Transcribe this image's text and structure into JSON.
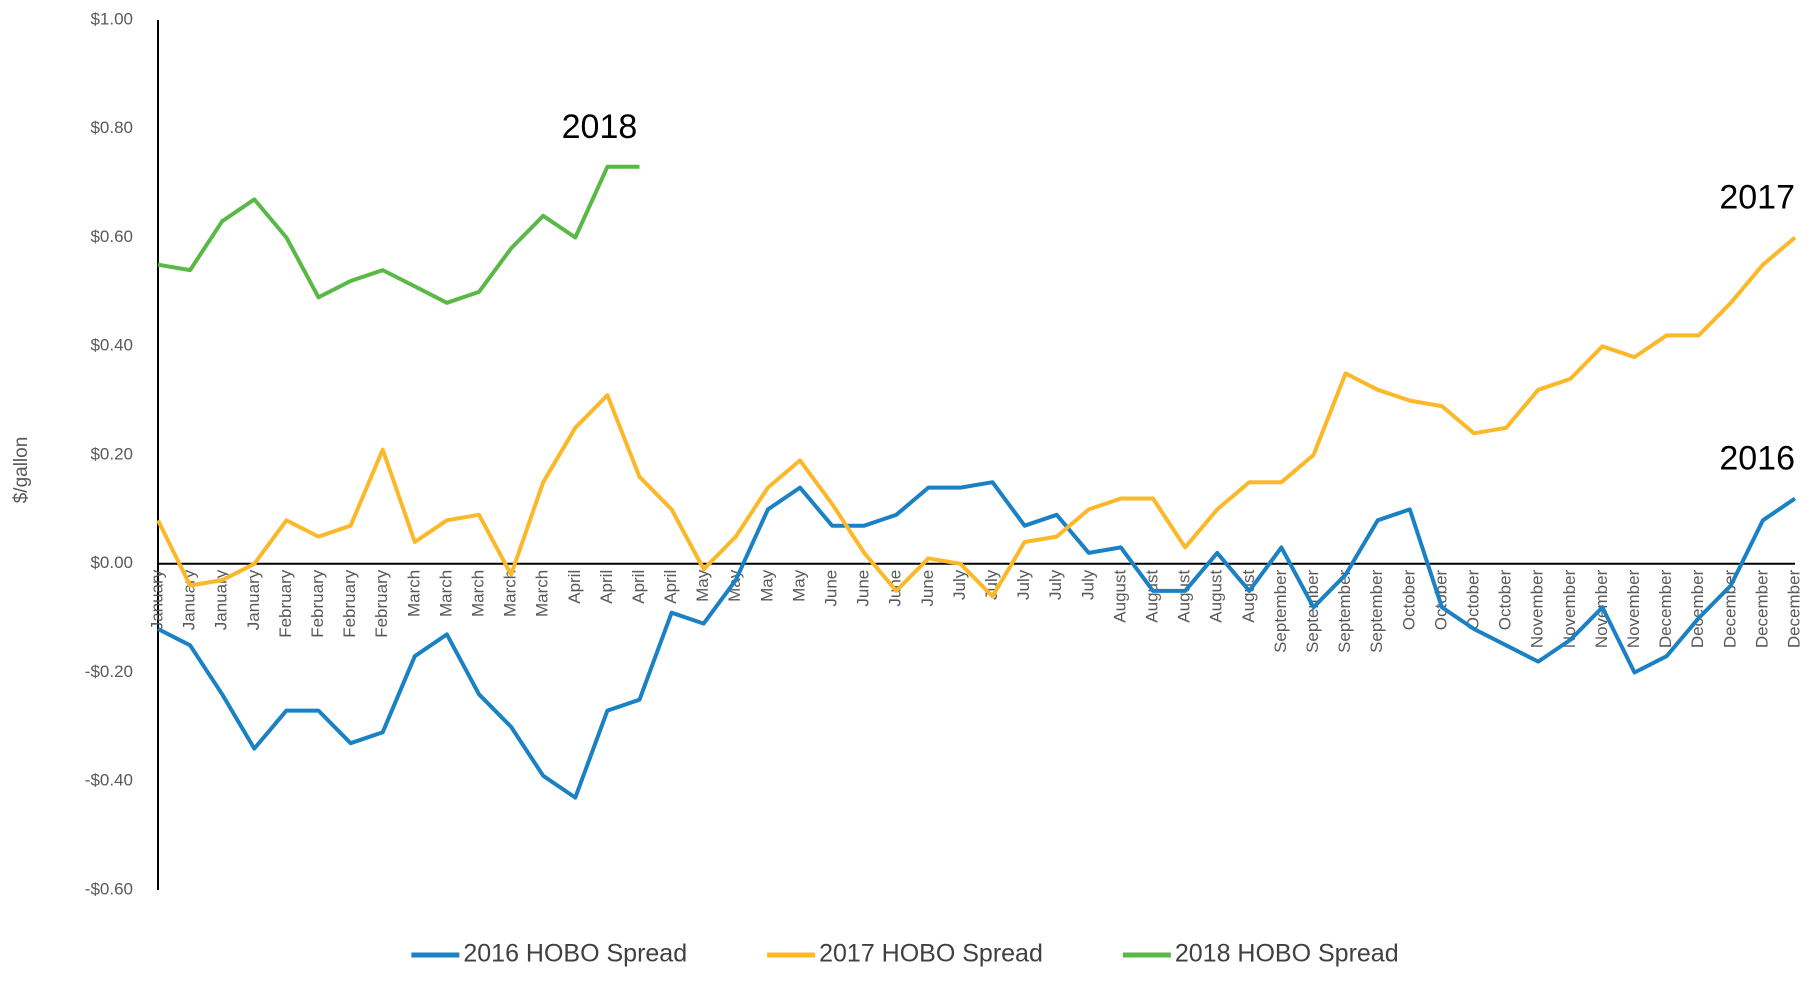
{
  "chart_data": {
    "type": "line",
    "y_label": "$/gallon",
    "categories": [
      "January",
      "January",
      "January",
      "January",
      "February",
      "February",
      "February",
      "February",
      "March",
      "March",
      "March",
      "March",
      "March",
      "April",
      "April",
      "April",
      "April",
      "May",
      "May",
      "May",
      "May",
      "June",
      "June",
      "June",
      "June",
      "July",
      "July",
      "July",
      "July",
      "July",
      "August",
      "August",
      "August",
      "August",
      "August",
      "September",
      "September",
      "September",
      "September",
      "October",
      "October",
      "October",
      "October",
      "November",
      "November",
      "November",
      "November",
      "December",
      "December",
      "December",
      "December",
      "December"
    ],
    "series": [
      {
        "name": "2016 HOBO Spread",
        "color": "#1a82c4",
        "values": [
          -0.12,
          -0.15,
          -0.24,
          -0.34,
          -0.27,
          -0.27,
          -0.33,
          -0.31,
          -0.17,
          -0.13,
          -0.24,
          -0.3,
          -0.39,
          -0.43,
          -0.27,
          -0.25,
          -0.09,
          -0.11,
          -0.03,
          0.1,
          0.14,
          0.07,
          0.07,
          0.09,
          0.14,
          0.14,
          0.15,
          0.07,
          0.09,
          0.02,
          0.03,
          -0.05,
          -0.05,
          0.02,
          -0.05,
          0.03,
          -0.08,
          -0.02,
          0.08,
          0.1,
          -0.08,
          -0.12,
          -0.15,
          -0.18,
          -0.14,
          -0.08,
          -0.2,
          -0.17,
          -0.1,
          -0.04,
          0.08,
          0.12
        ]
      },
      {
        "name": "2017 HOBO Spread",
        "color": "#fbb829",
        "values": [
          0.08,
          -0.04,
          -0.03,
          0.0,
          0.08,
          0.05,
          0.07,
          0.21,
          0.04,
          0.08,
          0.09,
          -0.02,
          0.15,
          0.25,
          0.31,
          0.16,
          0.1,
          -0.01,
          0.05,
          0.14,
          0.19,
          0.11,
          0.02,
          -0.05,
          0.01,
          0.0,
          -0.06,
          0.04,
          0.05,
          0.1,
          0.12,
          0.12,
          0.03,
          0.1,
          0.15,
          0.15,
          0.2,
          0.35,
          0.32,
          0.3,
          0.29,
          0.24,
          0.25,
          0.32,
          0.34,
          0.4,
          0.38,
          0.42,
          0.42,
          0.48,
          0.55,
          0.6
        ]
      },
      {
        "name": "2018 HOBO Spread",
        "color": "#5ab946",
        "values": [
          0.55,
          0.54,
          0.63,
          0.67,
          0.6,
          0.49,
          0.52,
          0.54,
          0.51,
          0.48,
          0.5,
          0.58,
          0.64,
          0.6,
          0.73,
          0.73,
          null,
          null,
          null,
          null,
          null,
          null,
          null,
          null,
          null,
          null,
          null,
          null,
          null,
          null,
          null,
          null,
          null,
          null,
          null,
          null,
          null,
          null,
          null,
          null,
          null,
          null,
          null,
          null,
          null,
          null,
          null,
          null,
          null,
          null,
          null,
          null
        ]
      }
    ],
    "annotations": [
      "2016",
      "2017",
      "2018"
    ],
    "ylim": [
      -0.6,
      1.0
    ],
    "yticks": [
      {
        "value": -0.6,
        "label": "-$0.60"
      },
      {
        "value": -0.4,
        "label": "-$0.40"
      },
      {
        "value": -0.2,
        "label": "-$0.20"
      },
      {
        "value": 0,
        "label": "$0.00"
      },
      {
        "value": 0.2,
        "label": "$0.20"
      },
      {
        "value": 0.4,
        "label": "$0.40"
      },
      {
        "value": 0.6,
        "label": "$0.60"
      },
      {
        "value": 0.8,
        "label": "$0.80"
      },
      {
        "value": 1.0,
        "label": "$1.00"
      }
    ],
    "grid": false,
    "legend": "bottom"
  }
}
